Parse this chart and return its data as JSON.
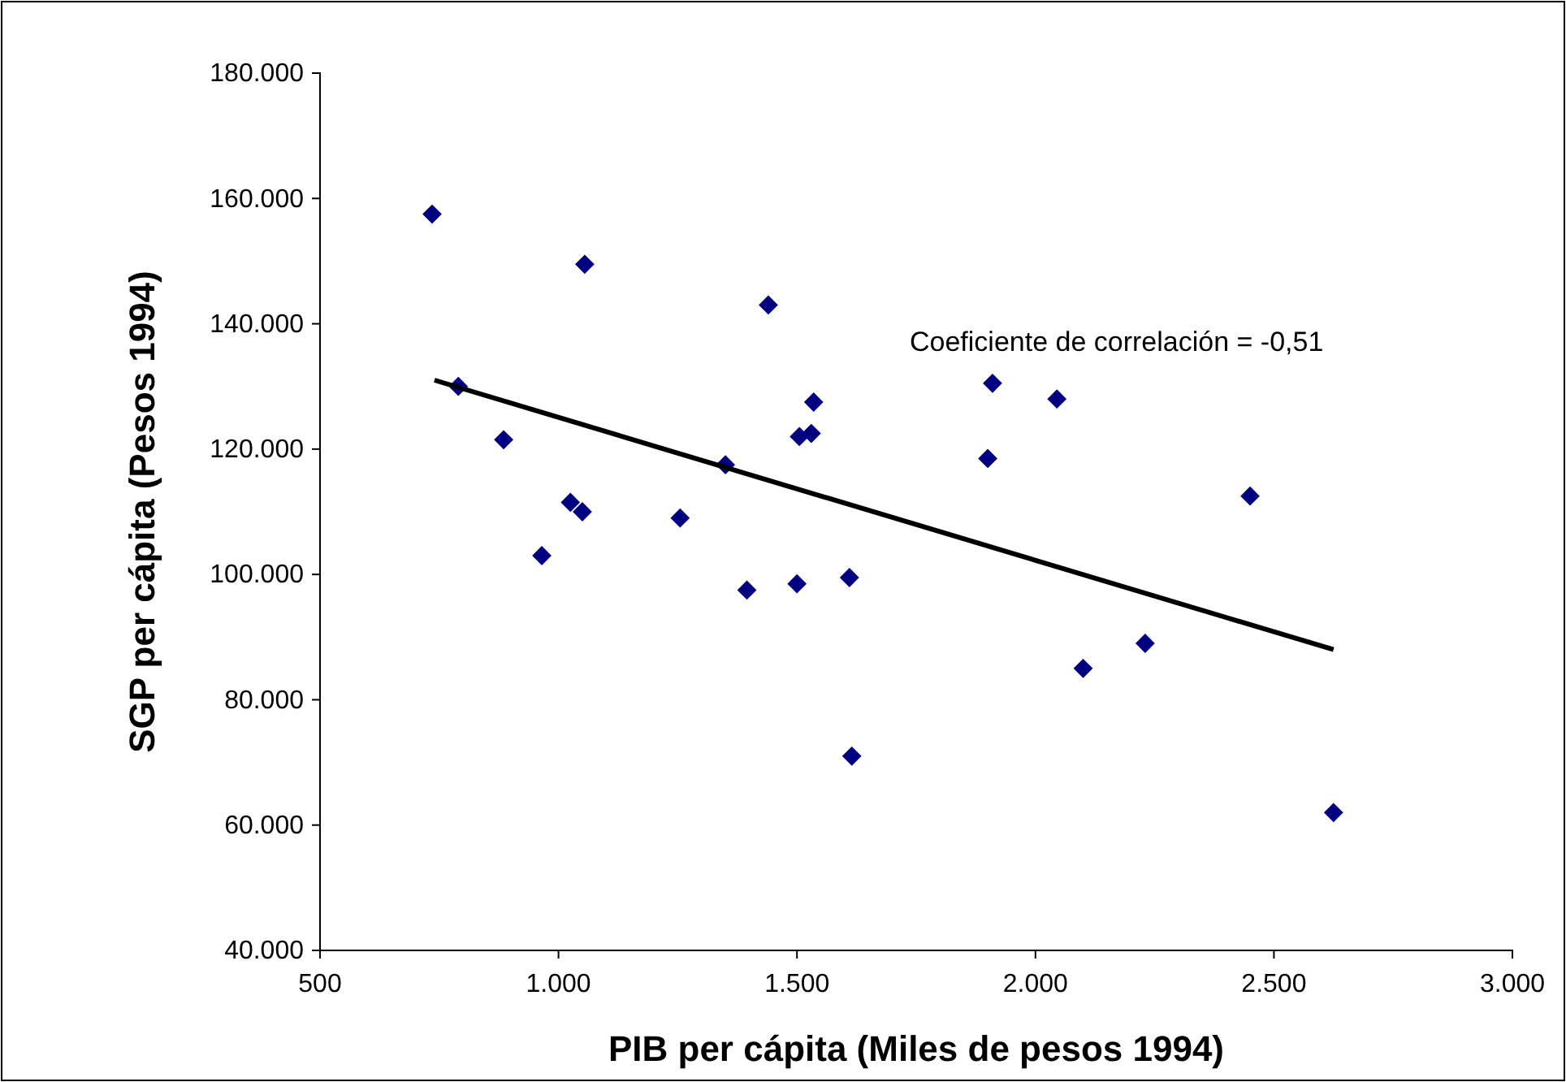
{
  "chart_data": {
    "type": "scatter",
    "xlabel": "PIB per cápita (Miles de pesos 1994)",
    "ylabel": "SGP per cápita (Pesos 1994)",
    "xlim": [
      500,
      3000
    ],
    "xticks": [
      500,
      {
        "value": 1000,
        "label": "1.000"
      },
      {
        "value": 1500,
        "label": "1.500"
      },
      {
        "value": 2000,
        "label": "2.000"
      },
      {
        "value": 2500,
        "label": "2.500"
      },
      {
        "value": 3000,
        "label": "3.000"
      }
    ],
    "ylim": [
      40000,
      180000
    ],
    "yticks": [
      {
        "value": 40000,
        "label": "40.000"
      },
      {
        "value": 60000,
        "label": "60.000"
      },
      {
        "value": 80000,
        "label": "80.000"
      },
      {
        "value": 100000,
        "label": "100.000"
      },
      {
        "value": 120000,
        "label": "120.000"
      },
      {
        "value": 140000,
        "label": "140.000"
      },
      {
        "value": 160000,
        "label": "160.000"
      },
      {
        "value": 180000,
        "label": "180.000"
      }
    ],
    "grid": false,
    "series": [
      {
        "marker": "diamond",
        "color": "#000080",
        "x": [
          735,
          790,
          885,
          965,
          1025,
          1050,
          1055,
          1255,
          1350,
          1395,
          1440,
          1500,
          1505,
          1530,
          1535,
          1610,
          1615,
          1900,
          1910,
          2045,
          2100,
          2230,
          2450,
          2625
        ],
        "values": [
          157500,
          130000,
          121500,
          103000,
          111500,
          110000,
          149500,
          109000,
          117500,
          97500,
          143000,
          98500,
          122000,
          122500,
          127500,
          99500,
          71000,
          118500,
          130500,
          128000,
          85000,
          89000,
          112500,
          62000
        ]
      },
      {
        "type": "line",
        "color": "#000000",
        "x": [
          740,
          2625
        ],
        "values": [
          131000,
          88000
        ],
        "line_style": "solid"
      }
    ],
    "annotations": [
      "Coeficiente de correlación = -0,51"
    ]
  }
}
